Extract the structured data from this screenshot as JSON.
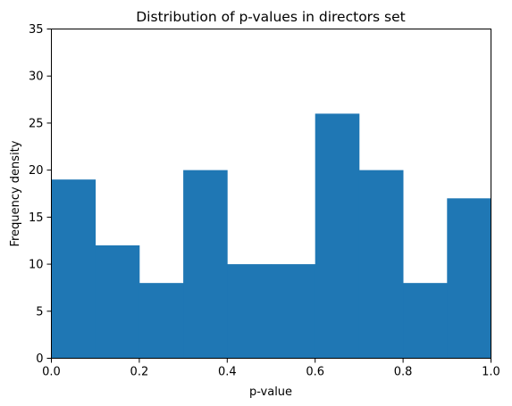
{
  "chart_data": {
    "type": "bar",
    "title": "Distribution of p-values in directors set",
    "xlabel": "p-value",
    "ylabel": "Frequency density",
    "xlim": [
      0,
      1
    ],
    "ylim": [
      0,
      35
    ],
    "xticks": [
      "0.0",
      "0.2",
      "0.4",
      "0.6",
      "0.8",
      "1.0"
    ],
    "yticks": [
      "0",
      "5",
      "10",
      "15",
      "20",
      "25",
      "30",
      "35"
    ],
    "bins": [
      {
        "start": 0.0,
        "end": 0.1,
        "value": 19
      },
      {
        "start": 0.1,
        "end": 0.2,
        "value": 12
      },
      {
        "start": 0.2,
        "end": 0.3,
        "value": 8
      },
      {
        "start": 0.3,
        "end": 0.4,
        "value": 20
      },
      {
        "start": 0.4,
        "end": 0.5,
        "value": 10
      },
      {
        "start": 0.5,
        "end": 0.6,
        "value": 10
      },
      {
        "start": 0.6,
        "end": 0.7,
        "value": 26
      },
      {
        "start": 0.7,
        "end": 0.8,
        "value": 20
      },
      {
        "start": 0.8,
        "end": 0.9,
        "value": 8
      },
      {
        "start": 0.9,
        "end": 1.0,
        "value": 17
      }
    ],
    "grid": false,
    "bar_color": "#1f77b4"
  }
}
